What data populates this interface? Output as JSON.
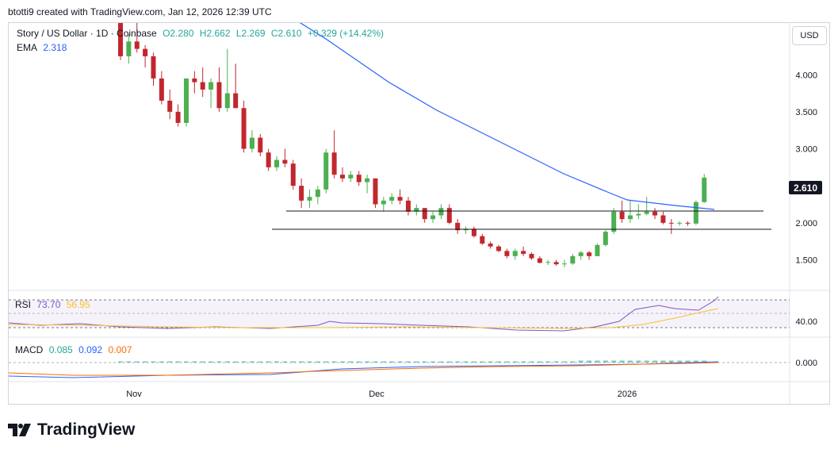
{
  "header": {
    "credit": "btotti9 created with TradingView.com, Jan 12, 2026 12:39 UTC"
  },
  "legend": {
    "symbol": "Story / US Dollar · 1D · Coinbase",
    "open": "O2.280",
    "high": "H2.662",
    "low": "L2.269",
    "close": "C2.610",
    "change": "+0.329 (+14.42%)",
    "ema_label": "EMA",
    "ema_value": "2.318",
    "rsi_label": "RSI",
    "rsi_value": "73.70",
    "rsi_ma": "56.95",
    "macd_label": "MACD",
    "macd_value": "0.085",
    "macd_signal": "0.092",
    "macd_hist": "0.007"
  },
  "currency_button": "USD",
  "last_price": "2.610",
  "brand": "TradingView",
  "colors": {
    "up": "#26a69a",
    "up_fill": "#4caf50",
    "down": "#c2272d",
    "ema": "#2962ff",
    "rsi": "#7e57c2",
    "rsi_ma": "#fbc02d",
    "macd": "#2962ff",
    "signal": "#ff6d00"
  },
  "chart_data": {
    "type": "candlestick",
    "interval": "1D",
    "x_ticks": [
      "Nov",
      "Dec",
      "2026"
    ],
    "y_ticks": [
      "1.500",
      "2.000",
      "2.500",
      "3.000",
      "3.500",
      "4.000",
      "4.500"
    ],
    "rsi_ticks": [
      "40.00"
    ],
    "macd_ticks": [
      "0.000"
    ],
    "ohlc": [
      [
        4.7,
        4.75,
        4.2,
        4.25
      ],
      [
        4.25,
        4.55,
        4.15,
        4.45
      ],
      [
        4.45,
        4.7,
        4.3,
        4.35
      ],
      [
        4.35,
        4.4,
        4.1,
        4.25
      ],
      [
        4.25,
        4.3,
        3.85,
        3.95
      ],
      [
        3.95,
        4.05,
        3.6,
        3.65
      ],
      [
        3.65,
        3.8,
        3.4,
        3.5
      ],
      [
        3.5,
        3.6,
        3.3,
        3.35
      ],
      [
        3.35,
        3.95,
        3.3,
        3.95
      ],
      [
        3.95,
        4.05,
        3.75,
        3.9
      ],
      [
        3.9,
        4.1,
        3.7,
        3.8
      ],
      [
        3.8,
        3.95,
        3.55,
        3.9
      ],
      [
        3.9,
        4.1,
        3.5,
        3.55
      ],
      [
        3.55,
        4.35,
        3.5,
        3.75
      ],
      [
        3.75,
        4.15,
        3.55,
        3.55
      ],
      [
        3.55,
        3.65,
        2.95,
        3.0
      ],
      [
        3.0,
        3.25,
        2.95,
        3.15
      ],
      [
        3.15,
        3.2,
        2.9,
        2.95
      ],
      [
        2.95,
        3.0,
        2.7,
        2.75
      ],
      [
        2.75,
        2.9,
        2.7,
        2.85
      ],
      [
        2.85,
        3.0,
        2.75,
        2.8
      ],
      [
        2.8,
        2.85,
        2.45,
        2.5
      ],
      [
        2.5,
        2.6,
        2.2,
        2.3
      ],
      [
        2.3,
        2.45,
        2.2,
        2.35
      ],
      [
        2.35,
        2.5,
        2.25,
        2.45
      ],
      [
        2.45,
        3.0,
        2.4,
        2.95
      ],
      [
        2.95,
        3.25,
        2.6,
        2.65
      ],
      [
        2.65,
        2.75,
        2.55,
        2.6
      ],
      [
        2.6,
        2.7,
        2.55,
        2.65
      ],
      [
        2.65,
        2.7,
        2.5,
        2.55
      ],
      [
        2.55,
        2.65,
        2.4,
        2.6
      ],
      [
        2.6,
        2.6,
        2.2,
        2.25
      ],
      [
        2.25,
        2.35,
        2.15,
        2.3
      ],
      [
        2.3,
        2.4,
        2.25,
        2.35
      ],
      [
        2.35,
        2.45,
        2.25,
        2.3
      ],
      [
        2.3,
        2.35,
        2.1,
        2.15
      ],
      [
        2.15,
        2.25,
        2.1,
        2.2
      ],
      [
        2.2,
        2.2,
        2.0,
        2.05
      ],
      [
        2.05,
        2.15,
        2.0,
        2.1
      ],
      [
        2.1,
        2.25,
        2.05,
        2.2
      ],
      [
        2.2,
        2.25,
        1.98,
        2.0
      ],
      [
        2.0,
        2.05,
        1.85,
        1.9
      ],
      [
        1.9,
        1.95,
        1.85,
        1.92
      ],
      [
        1.92,
        1.95,
        1.8,
        1.82
      ],
      [
        1.82,
        1.85,
        1.7,
        1.72
      ],
      [
        1.72,
        1.75,
        1.65,
        1.68
      ],
      [
        1.68,
        1.7,
        1.6,
        1.62
      ],
      [
        1.62,
        1.65,
        1.52,
        1.55
      ],
      [
        1.55,
        1.65,
        1.5,
        1.62
      ],
      [
        1.62,
        1.68,
        1.55,
        1.58
      ],
      [
        1.58,
        1.6,
        1.5,
        1.52
      ],
      [
        1.52,
        1.55,
        1.45,
        1.46
      ],
      [
        1.46,
        1.5,
        1.43,
        1.47
      ],
      [
        1.47,
        1.5,
        1.42,
        1.44
      ],
      [
        1.44,
        1.5,
        1.4,
        1.45
      ],
      [
        1.45,
        1.58,
        1.43,
        1.55
      ],
      [
        1.55,
        1.62,
        1.5,
        1.6
      ],
      [
        1.6,
        1.62,
        1.5,
        1.55
      ],
      [
        1.55,
        1.72,
        1.55,
        1.7
      ],
      [
        1.7,
        1.9,
        1.68,
        1.88
      ],
      [
        1.88,
        2.2,
        1.85,
        2.15
      ],
      [
        2.15,
        2.3,
        2.0,
        2.05
      ],
      [
        2.05,
        2.3,
        2.0,
        2.1
      ],
      [
        2.1,
        2.25,
        2.05,
        2.12
      ],
      [
        2.12,
        2.35,
        2.1,
        2.15
      ],
      [
        2.15,
        2.2,
        2.05,
        2.1
      ],
      [
        2.1,
        2.15,
        1.98,
        2.0
      ],
      [
        2.0,
        2.05,
        1.85,
        1.99
      ],
      [
        1.99,
        2.02,
        1.96,
        2.0
      ],
      [
        2.0,
        2.02,
        1.96,
        1.99
      ],
      [
        1.99,
        2.3,
        1.97,
        2.28
      ],
      [
        2.28,
        2.66,
        2.27,
        2.61
      ]
    ],
    "ema_label_value": 2.318,
    "horizontal_levels": [
      2.28,
      2.03
    ],
    "rsi": [],
    "macd": []
  }
}
